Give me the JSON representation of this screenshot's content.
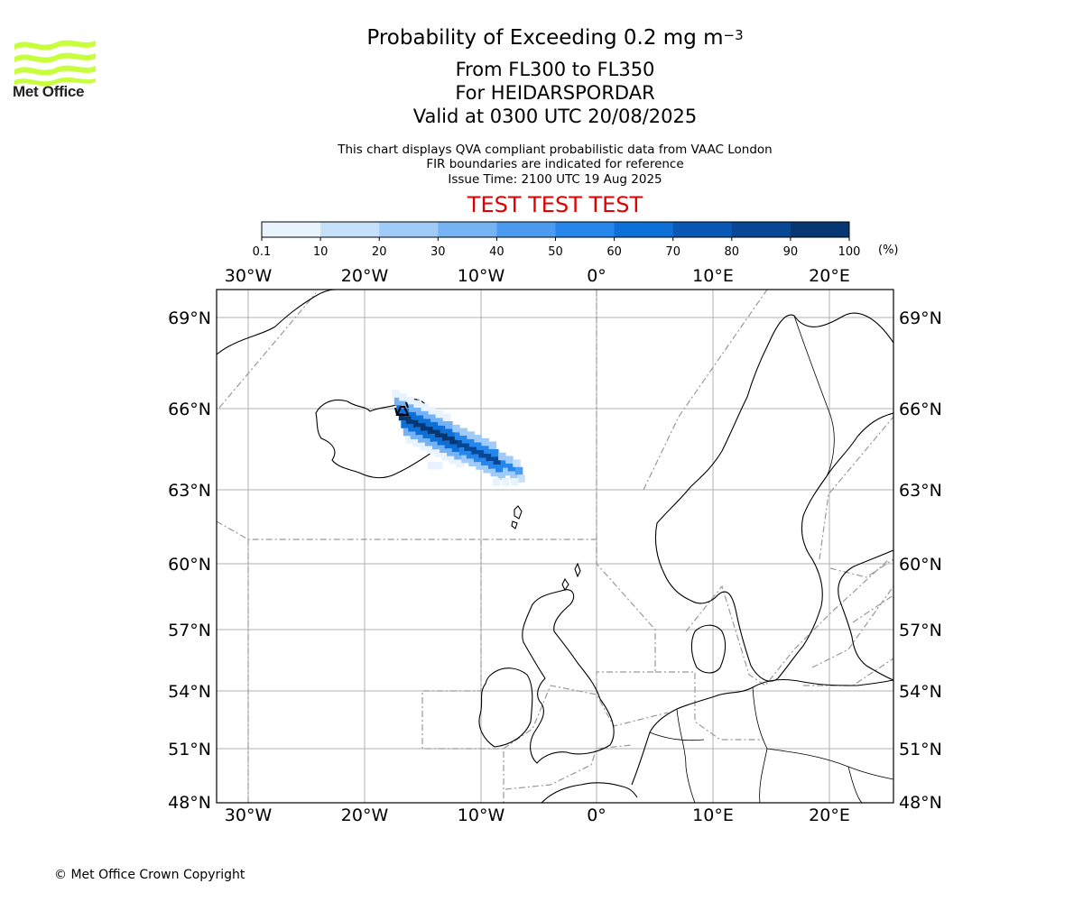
{
  "logo": {
    "text": "Met Office",
    "color": "#c8ff3c"
  },
  "title": {
    "line1_main": "Probability of Exceeding 0.2 mg m",
    "line1_sup": "−3",
    "line2": "From FL300 to FL350",
    "line3": "For HEIDARSPORDAR",
    "line4": "Valid at 0300 UTC 20/08/2025"
  },
  "info": {
    "line1": "This chart displays QVA compliant probabilistic data from VAAC London",
    "line2": "FIR boundaries are indicated for reference",
    "line3": "Issue Time: 2100 UTC 19 Aug 2025"
  },
  "test_banner": "TEST TEST TEST",
  "colorbar": {
    "ticks": [
      "0.1",
      "10",
      "20",
      "30",
      "40",
      "50",
      "60",
      "70",
      "80",
      "90",
      "100"
    ],
    "unit": "(%)",
    "colors": [
      "#e8f3fe",
      "#c6e0fb",
      "#a0cbf8",
      "#75b3f4",
      "#4b9bf0",
      "#2586ec",
      "#0d6fd8",
      "#0a58b5",
      "#084796",
      "#063772"
    ]
  },
  "map": {
    "lon_labels": [
      "30°W",
      "20°W",
      "10°W",
      "0°",
      "10°E",
      "20°E"
    ],
    "lat_labels": [
      "69°N",
      "66°N",
      "63°N",
      "60°N",
      "57°N",
      "54°N",
      "51°N",
      "48°N"
    ],
    "volcano": "HEIDARSPORDAR"
  },
  "copyright": "© Met Office Crown Copyright"
}
